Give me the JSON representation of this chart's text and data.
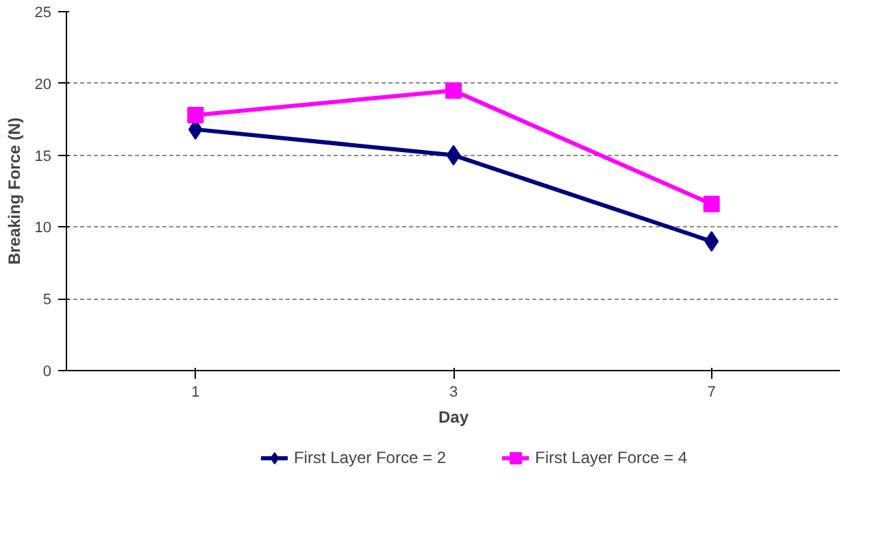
{
  "chart_data": {
    "type": "line",
    "xlabel": "Day",
    "ylabel": "Breaking Force (N)",
    "categories": [
      "1",
      "3",
      "7"
    ],
    "ylim": [
      0,
      25
    ],
    "yticks": [
      0,
      5,
      10,
      15,
      20,
      25
    ],
    "grid": "y",
    "legend": "bottom",
    "series": [
      {
        "name": "First Layer Force = 2",
        "color": "#000080",
        "marker": "diamond",
        "values": [
          16.8,
          15.0,
          9.0
        ]
      },
      {
        "name": "First Layer Force = 4",
        "color": "#ff00ff",
        "marker": "square",
        "values": [
          17.8,
          19.5,
          11.6
        ]
      }
    ]
  }
}
